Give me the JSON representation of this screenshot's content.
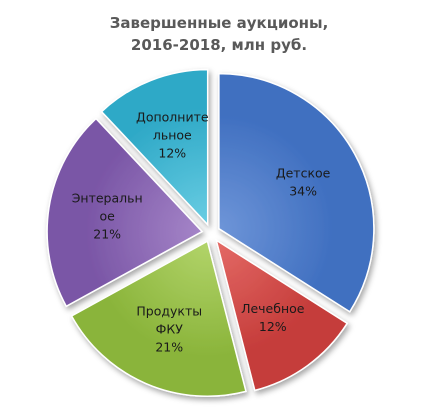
{
  "chart_data": {
    "type": "pie",
    "title_lines": [
      "Завершенные аукционы,",
      "2016-2018, млн руб."
    ],
    "slices": [
      {
        "label_lines": [
          "Детское"
        ],
        "value": 34,
        "value_label": "34%",
        "color": "#3f6fc0",
        "color_light": "#6e95d8"
      },
      {
        "label_lines": [
          "Лечебное"
        ],
        "value": 12,
        "value_label": "12%",
        "color": "#c53c3a",
        "color_light": "#e46a66"
      },
      {
        "label_lines": [
          "Продукты",
          "ФКУ"
        ],
        "value": 21,
        "value_label": "21%",
        "color": "#8ab43a",
        "color_light": "#b2d46a"
      },
      {
        "label_lines": [
          "Энтеральн",
          "ое"
        ],
        "value": 21,
        "value_label": "21%",
        "color": "#7a56a6",
        "color_light": "#a585c8"
      },
      {
        "label_lines": [
          "Дополните",
          "льное"
        ],
        "value": 12,
        "value_label": "12%",
        "color": "#2fa9c7",
        "color_light": "#69cde3"
      }
    ],
    "start_angle_deg": 0,
    "direction": "clockwise",
    "exploded": true,
    "legend": "none"
  }
}
